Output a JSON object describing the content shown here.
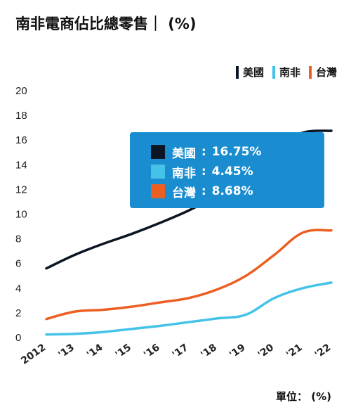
{
  "title": "南非電商佔比總零售｜ (%)",
  "unit_label": "單位： (%)",
  "chart_data": {
    "type": "line",
    "title": "南非電商佔比總零售｜ (%)",
    "x": [
      "2012",
      "'13",
      "'14",
      "'15",
      "'16",
      "'17",
      "'18",
      "'19",
      "'20",
      "'21",
      "'22"
    ],
    "ylim": [
      0,
      20
    ],
    "yticks": [
      0,
      2,
      4,
      6,
      8,
      10,
      12,
      14,
      16,
      18,
      20
    ],
    "grid": false,
    "legend_position": "top-right",
    "series": [
      {
        "name": "美國",
        "color": "#0b1524",
        "values": [
          5.6,
          6.7,
          7.6,
          8.4,
          9.3,
          10.3,
          11.5,
          12.9,
          15.4,
          16.6,
          16.75
        ]
      },
      {
        "name": "南非",
        "color": "#44c2e8",
        "values": [
          0.25,
          0.3,
          0.45,
          0.7,
          0.95,
          1.25,
          1.55,
          1.85,
          3.2,
          4.0,
          4.45
        ]
      },
      {
        "name": "台灣",
        "color": "#ec5f22",
        "values": [
          1.5,
          2.1,
          2.25,
          2.5,
          2.85,
          3.2,
          3.9,
          5.0,
          6.7,
          8.5,
          8.68
        ]
      }
    ],
    "tooltip": {
      "rows": [
        {
          "name": "美國",
          "value": "16.75%",
          "color": "#0b1524"
        },
        {
          "name": "南非",
          "value": "4.45%",
          "color": "#44c2e8"
        },
        {
          "name": "台灣",
          "value": "8.68%",
          "color": "#ec5f22"
        }
      ]
    }
  }
}
